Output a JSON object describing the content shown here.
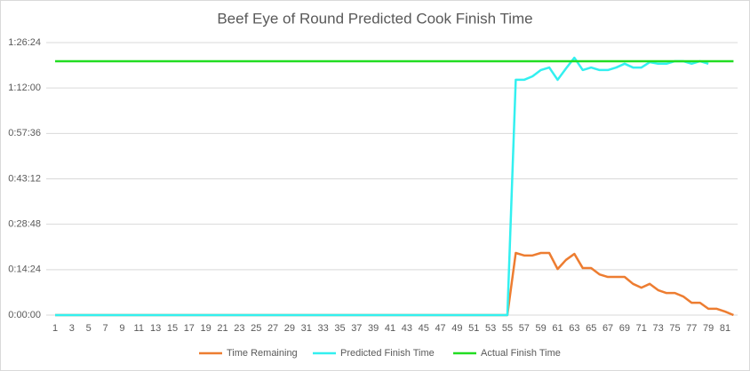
{
  "chart_data": {
    "type": "line",
    "title": "Beef Eye of Round Predicted Cook Finish Time",
    "categories": [
      1,
      null,
      3,
      null,
      5,
      null,
      7,
      null,
      9,
      null,
      11,
      null,
      13,
      null,
      15,
      null,
      17,
      null,
      19,
      null,
      21,
      null,
      23,
      null,
      25,
      null,
      27,
      null,
      29,
      null,
      31,
      null,
      33,
      null,
      35,
      null,
      37,
      null,
      39,
      null,
      41,
      null,
      43,
      null,
      45,
      null,
      47,
      null,
      49,
      null,
      51,
      null,
      53,
      null,
      55,
      null,
      57,
      null,
      59,
      null,
      61,
      null,
      63,
      null,
      65,
      null,
      67,
      null,
      69,
      null,
      71,
      null,
      73,
      null,
      75,
      null,
      77,
      null,
      79,
      null,
      81,
      null
    ],
    "series": [
      {
        "name": "Time Remaining",
        "color": "#ed7d31",
        "values": [
          0,
          0,
          0,
          0,
          0,
          0,
          0,
          0,
          0,
          0,
          0,
          0,
          0,
          0,
          0,
          0,
          0,
          0,
          0,
          0,
          0,
          0,
          0,
          0,
          0,
          0,
          0,
          0,
          0,
          0,
          0,
          0,
          0,
          0,
          0,
          0,
          0,
          0,
          0,
          0,
          0,
          0,
          0,
          0,
          0,
          0,
          0,
          0,
          0,
          0,
          0,
          0,
          0,
          0,
          0,
          19.7,
          18.9,
          18.9,
          19.7,
          19.7,
          14.6,
          17.5,
          19.4,
          14.9,
          14.9,
          12.9,
          12.1,
          12.1,
          12.1,
          9.9,
          8.7,
          9.9,
          7.9,
          7.0,
          7.0,
          5.9,
          3.9,
          3.9,
          2.0,
          2.0,
          1.1,
          0
        ]
      },
      {
        "name": "Predicted Finish Time",
        "color": "#33f0f0",
        "values": [
          0,
          0,
          0,
          0,
          0,
          0,
          0,
          0,
          0,
          0,
          0,
          0,
          0,
          0,
          0,
          0,
          0,
          0,
          0,
          0,
          0,
          0,
          0,
          0,
          0,
          0,
          0,
          0,
          0,
          0,
          0,
          0,
          0,
          0,
          0,
          0,
          0,
          0,
          0,
          0,
          0,
          0,
          0,
          0,
          0,
          0,
          0,
          0,
          0,
          0,
          0,
          0,
          0,
          0,
          0,
          74.6,
          74.6,
          75.7,
          77.7,
          78.5,
          74.6,
          78.2,
          81.6,
          77.7,
          78.5,
          77.7,
          77.7,
          78.5,
          79.7,
          78.5,
          78.5,
          80.2,
          79.7,
          79.7,
          80.5,
          80.5,
          79.7,
          80.5,
          79.7,
          null,
          null,
          null
        ]
      },
      {
        "name": "Actual Finish Time",
        "color": "#22dd22",
        "values": [
          80.5,
          80.5,
          80.5,
          80.5,
          80.5,
          80.5,
          80.5,
          80.5,
          80.5,
          80.5,
          80.5,
          80.5,
          80.5,
          80.5,
          80.5,
          80.5,
          80.5,
          80.5,
          80.5,
          80.5,
          80.5,
          80.5,
          80.5,
          80.5,
          80.5,
          80.5,
          80.5,
          80.5,
          80.5,
          80.5,
          80.5,
          80.5,
          80.5,
          80.5,
          80.5,
          80.5,
          80.5,
          80.5,
          80.5,
          80.5,
          80.5,
          80.5,
          80.5,
          80.5,
          80.5,
          80.5,
          80.5,
          80.5,
          80.5,
          80.5,
          80.5,
          80.5,
          80.5,
          80.5,
          80.5,
          80.5,
          80.5,
          80.5,
          80.5,
          80.5,
          80.5,
          80.5,
          80.5,
          80.5,
          80.5,
          80.5,
          80.5,
          80.5,
          80.5,
          80.5,
          80.5,
          80.5,
          80.5,
          80.5,
          80.5,
          80.5,
          80.5,
          80.5,
          80.5,
          80.5,
          80.5,
          80.5
        ]
      }
    ],
    "ylim": [
      0,
      86.4
    ],
    "yticks": [
      {
        "value": 0,
        "label": "0:00:00"
      },
      {
        "value": 14.4,
        "label": "0:14:24"
      },
      {
        "value": 28.8,
        "label": "0:28:48"
      },
      {
        "value": 43.2,
        "label": "0:43:12"
      },
      {
        "value": 57.6,
        "label": "0:57:36"
      },
      {
        "value": 72,
        "label": "1:12:00"
      },
      {
        "value": 86.4,
        "label": "1:26:24"
      }
    ],
    "grid": true,
    "legend": "bottom"
  }
}
